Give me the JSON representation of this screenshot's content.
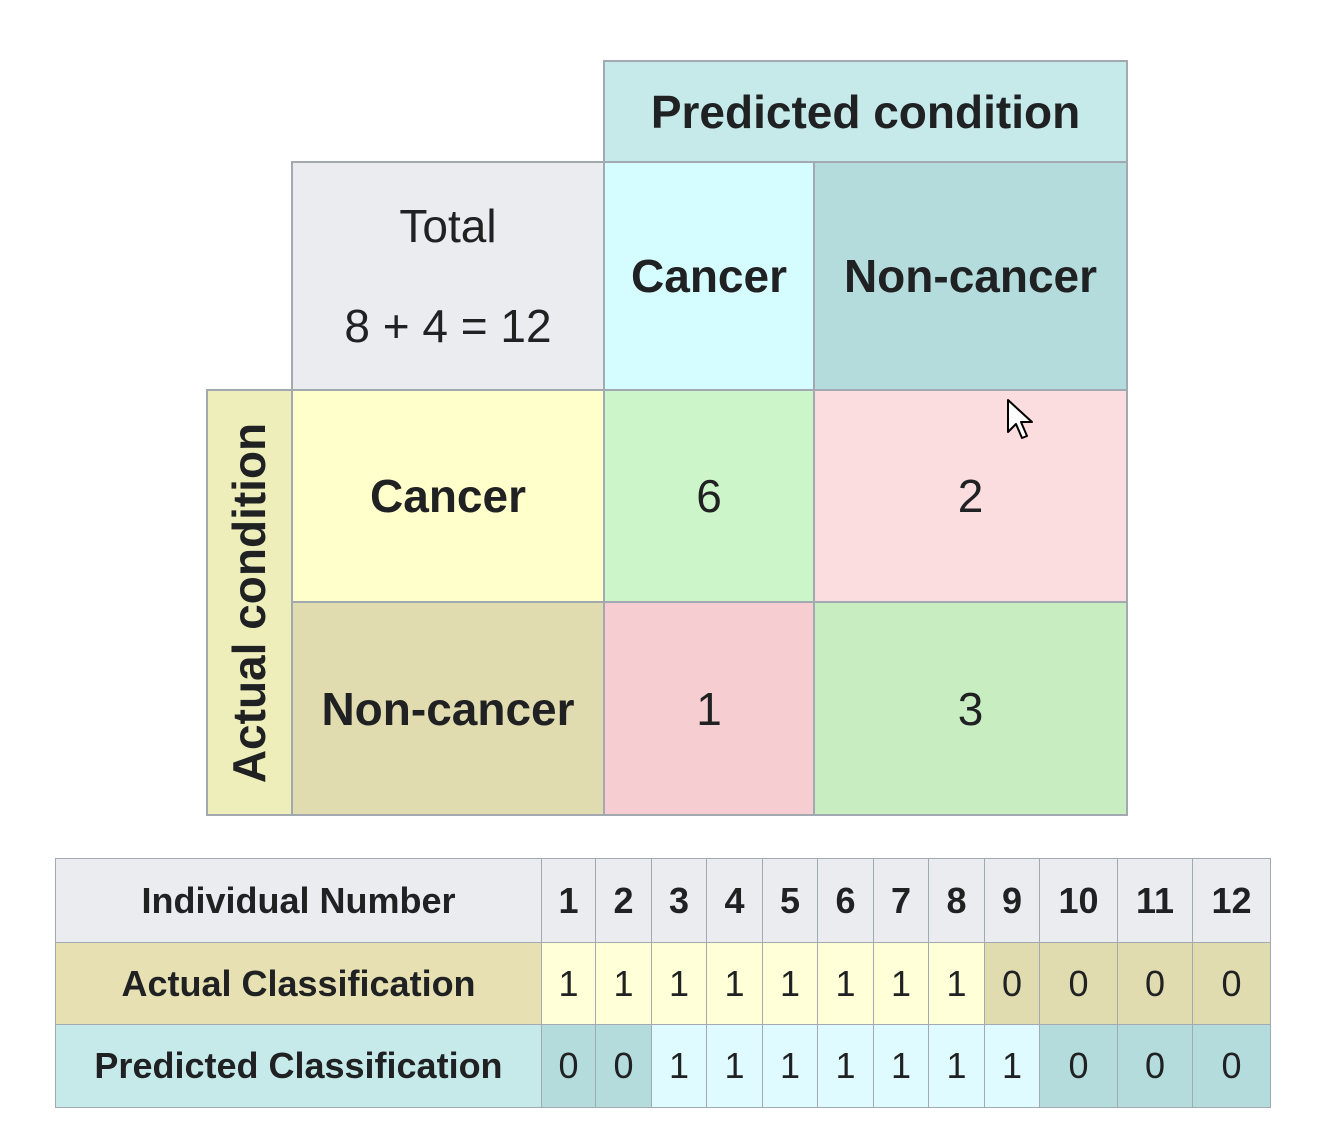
{
  "matrix": {
    "predicted_header": "Predicted condition",
    "actual_header": "Actual condition",
    "total_label": "Total",
    "total_formula": "8 + 4 = 12",
    "predicted_cancer": "Cancer",
    "predicted_noncancer": "Non-cancer",
    "actual_cancer": "Cancer",
    "actual_noncancer": "Non-cancer",
    "true_positive": "6",
    "false_negative": "2",
    "false_positive": "1",
    "true_negative": "3",
    "colors": {
      "header": "#c6eaea",
      "total": "#eaecf0",
      "pred_cancer": "#d5fcff",
      "pred_noncancer": "#b4dcdd",
      "actual_header": "#eeeebb",
      "actual_cancer": "#ffffcc",
      "actual_noncancer": "#e1dcb0",
      "correct": "#ccf6c9",
      "incorrect": "#fbdcdf"
    }
  },
  "individuals": {
    "header_label": "Individual Number",
    "actual_label": "Actual Classification",
    "predicted_label": "Predicted Classification",
    "numbers": [
      "1",
      "2",
      "3",
      "4",
      "5",
      "6",
      "7",
      "8",
      "9",
      "10",
      "11",
      "12"
    ],
    "actual": [
      "1",
      "1",
      "1",
      "1",
      "1",
      "1",
      "1",
      "1",
      "0",
      "0",
      "0",
      "0"
    ],
    "predicted": [
      "0",
      "0",
      "1",
      "1",
      "1",
      "1",
      "1",
      "1",
      "1",
      "0",
      "0",
      "0"
    ],
    "colors": {
      "actual_1": "#ffffd8",
      "actual_0": "#e1dcb0",
      "predicted_1": "#dffbff",
      "predicted_0": "#b4dcdd"
    }
  },
  "cursor_icon": "mouse-pointer-icon"
}
